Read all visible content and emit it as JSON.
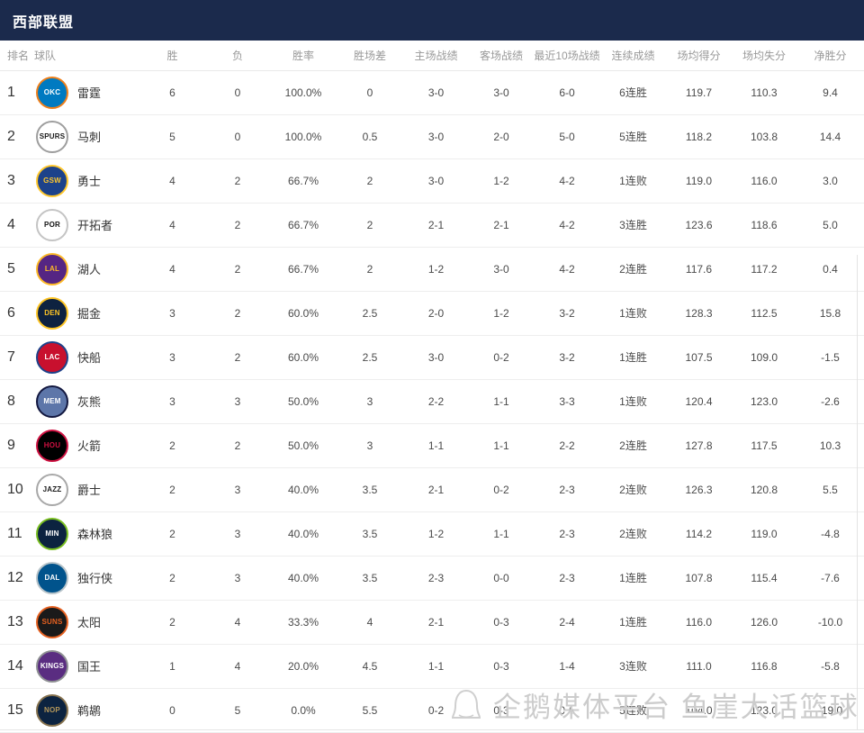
{
  "header": {
    "title": "西部联盟"
  },
  "table": {
    "columns": [
      "排名",
      "球队",
      "胜",
      "负",
      "胜率",
      "胜场差",
      "主场战绩",
      "客场战绩",
      "最近10场战绩",
      "连续成绩",
      "场均得分",
      "场均失分",
      "净胜分"
    ],
    "rows": [
      {
        "rank": "1",
        "team": "雷霆",
        "abbr": "OKC",
        "logo_bg": "#007ac1",
        "logo_border": "#ef7f1a",
        "logo_text": "#ffffff",
        "wins": "6",
        "losses": "0",
        "pct": "100.0%",
        "gb": "0",
        "home": "3-0",
        "away": "3-0",
        "last10": "6-0",
        "streak": "6连胜",
        "ppg": "119.7",
        "oppg": "110.3",
        "diff": "9.4"
      },
      {
        "rank": "2",
        "team": "马刺",
        "abbr": "SPURS",
        "logo_bg": "#ffffff",
        "logo_border": "#9e9e9e",
        "logo_text": "#1a1a1a",
        "wins": "5",
        "losses": "0",
        "pct": "100.0%",
        "gb": "0.5",
        "home": "3-0",
        "away": "2-0",
        "last10": "5-0",
        "streak": "5连胜",
        "ppg": "118.2",
        "oppg": "103.8",
        "diff": "14.4"
      },
      {
        "rank": "3",
        "team": "勇士",
        "abbr": "GSW",
        "logo_bg": "#1d428a",
        "logo_border": "#ffc72c",
        "logo_text": "#ffc72c",
        "wins": "4",
        "losses": "2",
        "pct": "66.7%",
        "gb": "2",
        "home": "3-0",
        "away": "1-2",
        "last10": "4-2",
        "streak": "1连败",
        "ppg": "119.0",
        "oppg": "116.0",
        "diff": "3.0"
      },
      {
        "rank": "4",
        "team": "开拓者",
        "abbr": "POR",
        "logo_bg": "#ffffff",
        "logo_border": "#c4c4c4",
        "logo_text": "#111111",
        "wins": "4",
        "losses": "2",
        "pct": "66.7%",
        "gb": "2",
        "home": "2-1",
        "away": "2-1",
        "last10": "4-2",
        "streak": "3连胜",
        "ppg": "123.6",
        "oppg": "118.6",
        "diff": "5.0"
      },
      {
        "rank": "5",
        "team": "湖人",
        "abbr": "LAL",
        "logo_bg": "#552583",
        "logo_border": "#fdb927",
        "logo_text": "#fdb927",
        "wins": "4",
        "losses": "2",
        "pct": "66.7%",
        "gb": "2",
        "home": "1-2",
        "away": "3-0",
        "last10": "4-2",
        "streak": "2连胜",
        "ppg": "117.6",
        "oppg": "117.2",
        "diff": "0.4"
      },
      {
        "rank": "6",
        "team": "掘金",
        "abbr": "DEN",
        "logo_bg": "#0e2240",
        "logo_border": "#fec524",
        "logo_text": "#fec524",
        "wins": "3",
        "losses": "2",
        "pct": "60.0%",
        "gb": "2.5",
        "home": "2-0",
        "away": "1-2",
        "last10": "3-2",
        "streak": "1连败",
        "ppg": "128.3",
        "oppg": "112.5",
        "diff": "15.8"
      },
      {
        "rank": "7",
        "team": "快船",
        "abbr": "LAC",
        "logo_bg": "#c8102e",
        "logo_border": "#1d428a",
        "logo_text": "#ffffff",
        "wins": "3",
        "losses": "2",
        "pct": "60.0%",
        "gb": "2.5",
        "home": "3-0",
        "away": "0-2",
        "last10": "3-2",
        "streak": "1连胜",
        "ppg": "107.5",
        "oppg": "109.0",
        "diff": "-1.5"
      },
      {
        "rank": "8",
        "team": "灰熊",
        "abbr": "MEM",
        "logo_bg": "#5d76a9",
        "logo_border": "#12173f",
        "logo_text": "#ffffff",
        "wins": "3",
        "losses": "3",
        "pct": "50.0%",
        "gb": "3",
        "home": "2-2",
        "away": "1-1",
        "last10": "3-3",
        "streak": "1连败",
        "ppg": "120.4",
        "oppg": "123.0",
        "diff": "-2.6"
      },
      {
        "rank": "9",
        "team": "火箭",
        "abbr": "HOU",
        "logo_bg": "#000000",
        "logo_border": "#ce1141",
        "logo_text": "#ce1141",
        "wins": "2",
        "losses": "2",
        "pct": "50.0%",
        "gb": "3",
        "home": "1-1",
        "away": "1-1",
        "last10": "2-2",
        "streak": "2连胜",
        "ppg": "127.8",
        "oppg": "117.5",
        "diff": "10.3"
      },
      {
        "rank": "10",
        "team": "爵士",
        "abbr": "JAZZ",
        "logo_bg": "#ffffff",
        "logo_border": "#a8a8a8",
        "logo_text": "#1a1a1a",
        "wins": "2",
        "losses": "3",
        "pct": "40.0%",
        "gb": "3.5",
        "home": "2-1",
        "away": "0-2",
        "last10": "2-3",
        "streak": "2连败",
        "ppg": "126.3",
        "oppg": "120.8",
        "diff": "5.5"
      },
      {
        "rank": "11",
        "team": "森林狼",
        "abbr": "MIN",
        "logo_bg": "#0c2340",
        "logo_border": "#78be20",
        "logo_text": "#ffffff",
        "wins": "2",
        "losses": "3",
        "pct": "40.0%",
        "gb": "3.5",
        "home": "1-2",
        "away": "1-1",
        "last10": "2-3",
        "streak": "2连败",
        "ppg": "114.2",
        "oppg": "119.0",
        "diff": "-4.8"
      },
      {
        "rank": "12",
        "team": "独行侠",
        "abbr": "DAL",
        "logo_bg": "#00538c",
        "logo_border": "#b8c4ca",
        "logo_text": "#ffffff",
        "wins": "2",
        "losses": "3",
        "pct": "40.0%",
        "gb": "3.5",
        "home": "2-3",
        "away": "0-0",
        "last10": "2-3",
        "streak": "1连胜",
        "ppg": "107.8",
        "oppg": "115.4",
        "diff": "-7.6"
      },
      {
        "rank": "13",
        "team": "太阳",
        "abbr": "SUNS",
        "logo_bg": "#1a1a1a",
        "logo_border": "#e56020",
        "logo_text": "#e56020",
        "wins": "2",
        "losses": "4",
        "pct": "33.3%",
        "gb": "4",
        "home": "2-1",
        "away": "0-3",
        "last10": "2-4",
        "streak": "1连胜",
        "ppg": "116.0",
        "oppg": "126.0",
        "diff": "-10.0"
      },
      {
        "rank": "14",
        "team": "国王",
        "abbr": "KINGS",
        "logo_bg": "#5a2d81",
        "logo_border": "#8e9093",
        "logo_text": "#ffffff",
        "wins": "1",
        "losses": "4",
        "pct": "20.0%",
        "gb": "4.5",
        "home": "1-1",
        "away": "0-3",
        "last10": "1-4",
        "streak": "3连败",
        "ppg": "111.0",
        "oppg": "116.8",
        "diff": "-5.8"
      },
      {
        "rank": "15",
        "team": "鹈鹕",
        "abbr": "NOP",
        "logo_bg": "#0c2340",
        "logo_border": "#85714d",
        "logo_text": "#b4975a",
        "wins": "0",
        "losses": "5",
        "pct": "0.0%",
        "gb": "5.5",
        "home": "0-2",
        "away": "0-3",
        "last10": "0-5",
        "streak": "5连败",
        "ppg": "104.0",
        "oppg": "123.0",
        "diff": "-19.0"
      }
    ]
  },
  "watermark": {
    "text": "企鹅媒体平台 鱼崖大话篮球"
  }
}
